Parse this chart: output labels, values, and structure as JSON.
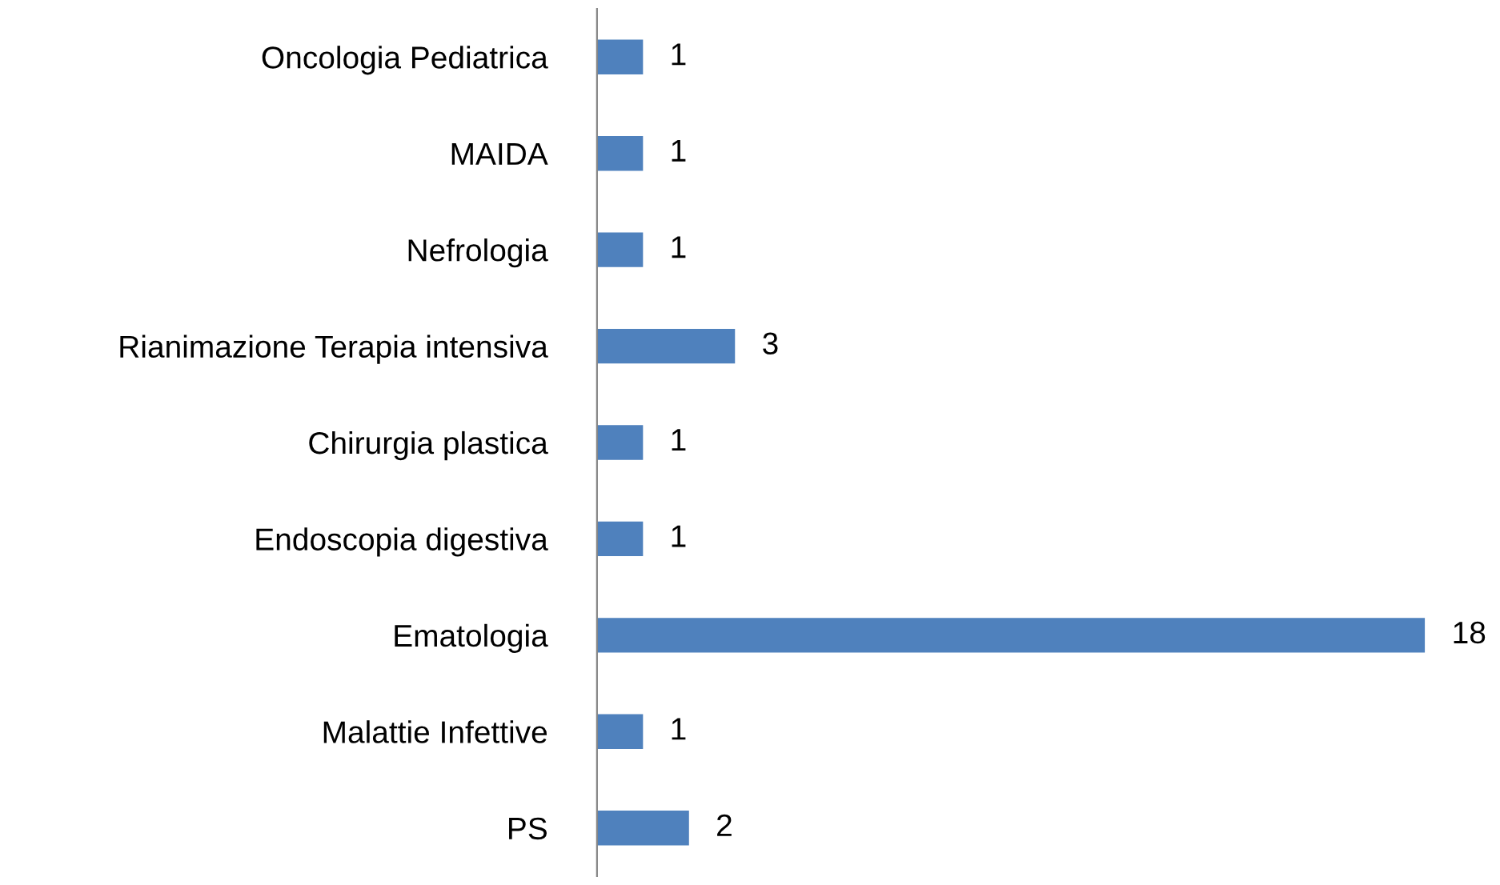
{
  "chart_data": {
    "type": "bar",
    "orientation": "horizontal",
    "categories": [
      "Oncologia Pediatrica",
      "MAIDA",
      "Nefrologia",
      "Rianimazione Terapia intensiva",
      "Chirurgia plastica",
      "Endoscopia digestiva",
      "Ematologia",
      "Malattie Infettive",
      "PS"
    ],
    "values": [
      1,
      1,
      1,
      3,
      1,
      1,
      18,
      1,
      2
    ],
    "color": "#4f81bd",
    "data_labels": true,
    "tick_labels": "y",
    "grid": false,
    "legend": false
  }
}
